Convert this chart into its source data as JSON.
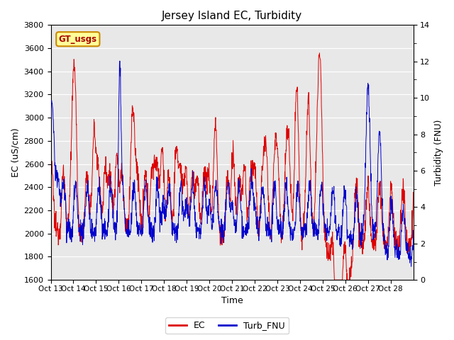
{
  "title": "Jersey Island EC, Turbidity",
  "xlabel": "Time",
  "ylabel_left": "EC (uS/cm)",
  "ylabel_right": "Turbidity (FNU)",
  "ylim_left": [
    1600,
    3800
  ],
  "ylim_right": [
    0,
    14
  ],
  "ec_color": "#dd0000",
  "turb_color": "#0000cc",
  "legend_ec": "EC",
  "legend_turb": "Turb_FNU",
  "xtick_labels": [
    "Oct 13",
    "Oct 14",
    "Oct 15",
    "Oct 16",
    "Oct 17",
    "Oct 18",
    "Oct 19",
    "Oct 20",
    "Oct 21",
    "Oct 22",
    "Oct 23",
    "Oct 24",
    "Oct 25",
    "Oct 26",
    "Oct 27",
    "Oct 28"
  ],
  "yticks_left": [
    1600,
    1800,
    2000,
    2200,
    2400,
    2600,
    2800,
    3000,
    3200,
    3400,
    3600,
    3800
  ],
  "yticks_right": [
    0,
    2,
    4,
    6,
    8,
    10,
    12,
    14
  ],
  "annotation_text": "GT_usgs",
  "annotation_bg": "#ffff99",
  "annotation_border": "#cc8800",
  "fig_bg": "#ffffff",
  "axes_bg": "#e8e8e8"
}
